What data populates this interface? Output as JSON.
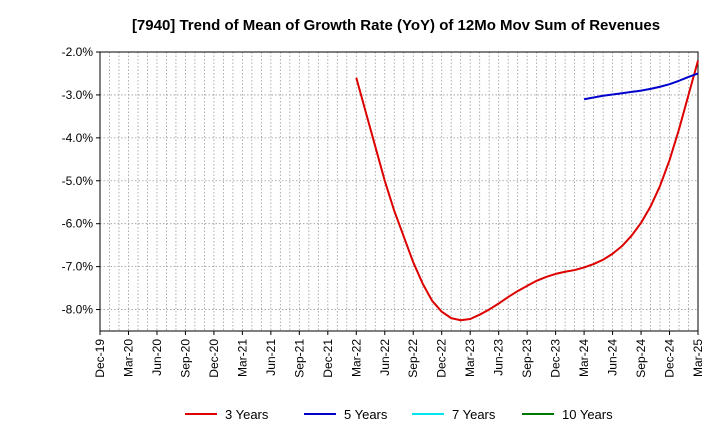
{
  "chart_data": {
    "type": "line",
    "title": "[7940]  Trend of Mean of Growth Rate (YoY) of 12Mo Mov Sum of Revenues",
    "xlabel": "",
    "ylabel": "",
    "x_ticks": [
      "Dec-19",
      "Mar-20",
      "Jun-20",
      "Sep-20",
      "Dec-20",
      "Mar-21",
      "Jun-21",
      "Sep-21",
      "Dec-21",
      "Mar-22",
      "Jun-22",
      "Sep-22",
      "Dec-22",
      "Mar-23",
      "Jun-23",
      "Sep-23",
      "Dec-23",
      "Mar-24",
      "Jun-24",
      "Sep-24",
      "Dec-24",
      "Mar-25"
    ],
    "y_ticks": [
      "-8.0%",
      "-7.0%",
      "-6.0%",
      "-5.0%",
      "-4.0%",
      "-3.0%",
      "-2.0%"
    ],
    "ylim": [
      -8.5,
      -2.0
    ],
    "grid": true,
    "legend_position": "bottom",
    "series": [
      {
        "name": "3 Years",
        "color": "#dd0000",
        "start_month_index": 27,
        "values": [
          -2.6,
          -3.4,
          -4.2,
          -5.0,
          -5.7,
          -6.3,
          -6.9,
          -7.4,
          -7.8,
          -8.05,
          -8.2,
          -8.25,
          -8.22,
          -8.12,
          -8.0,
          -7.86,
          -7.71,
          -7.57,
          -7.45,
          -7.33,
          -7.24,
          -7.17,
          -7.12,
          -7.08,
          -7.02,
          -6.94,
          -6.84,
          -6.7,
          -6.52,
          -6.28,
          -5.98,
          -5.6,
          -5.12,
          -4.52,
          -3.8,
          -3.0,
          -2.2
        ]
      },
      {
        "name": "5 Years",
        "color": "#0000cc",
        "start_month_index": 51,
        "values": [
          -3.1,
          -3.06,
          -3.02,
          -2.99,
          -2.96,
          -2.93,
          -2.9,
          -2.86,
          -2.81,
          -2.75,
          -2.67,
          -2.58,
          -2.5
        ]
      },
      {
        "name": "7 Years",
        "color": "#00e5ee",
        "start_month_index": null,
        "values": []
      },
      {
        "name": "10 Years",
        "color": "#007700",
        "start_month_index": null,
        "values": []
      }
    ]
  }
}
